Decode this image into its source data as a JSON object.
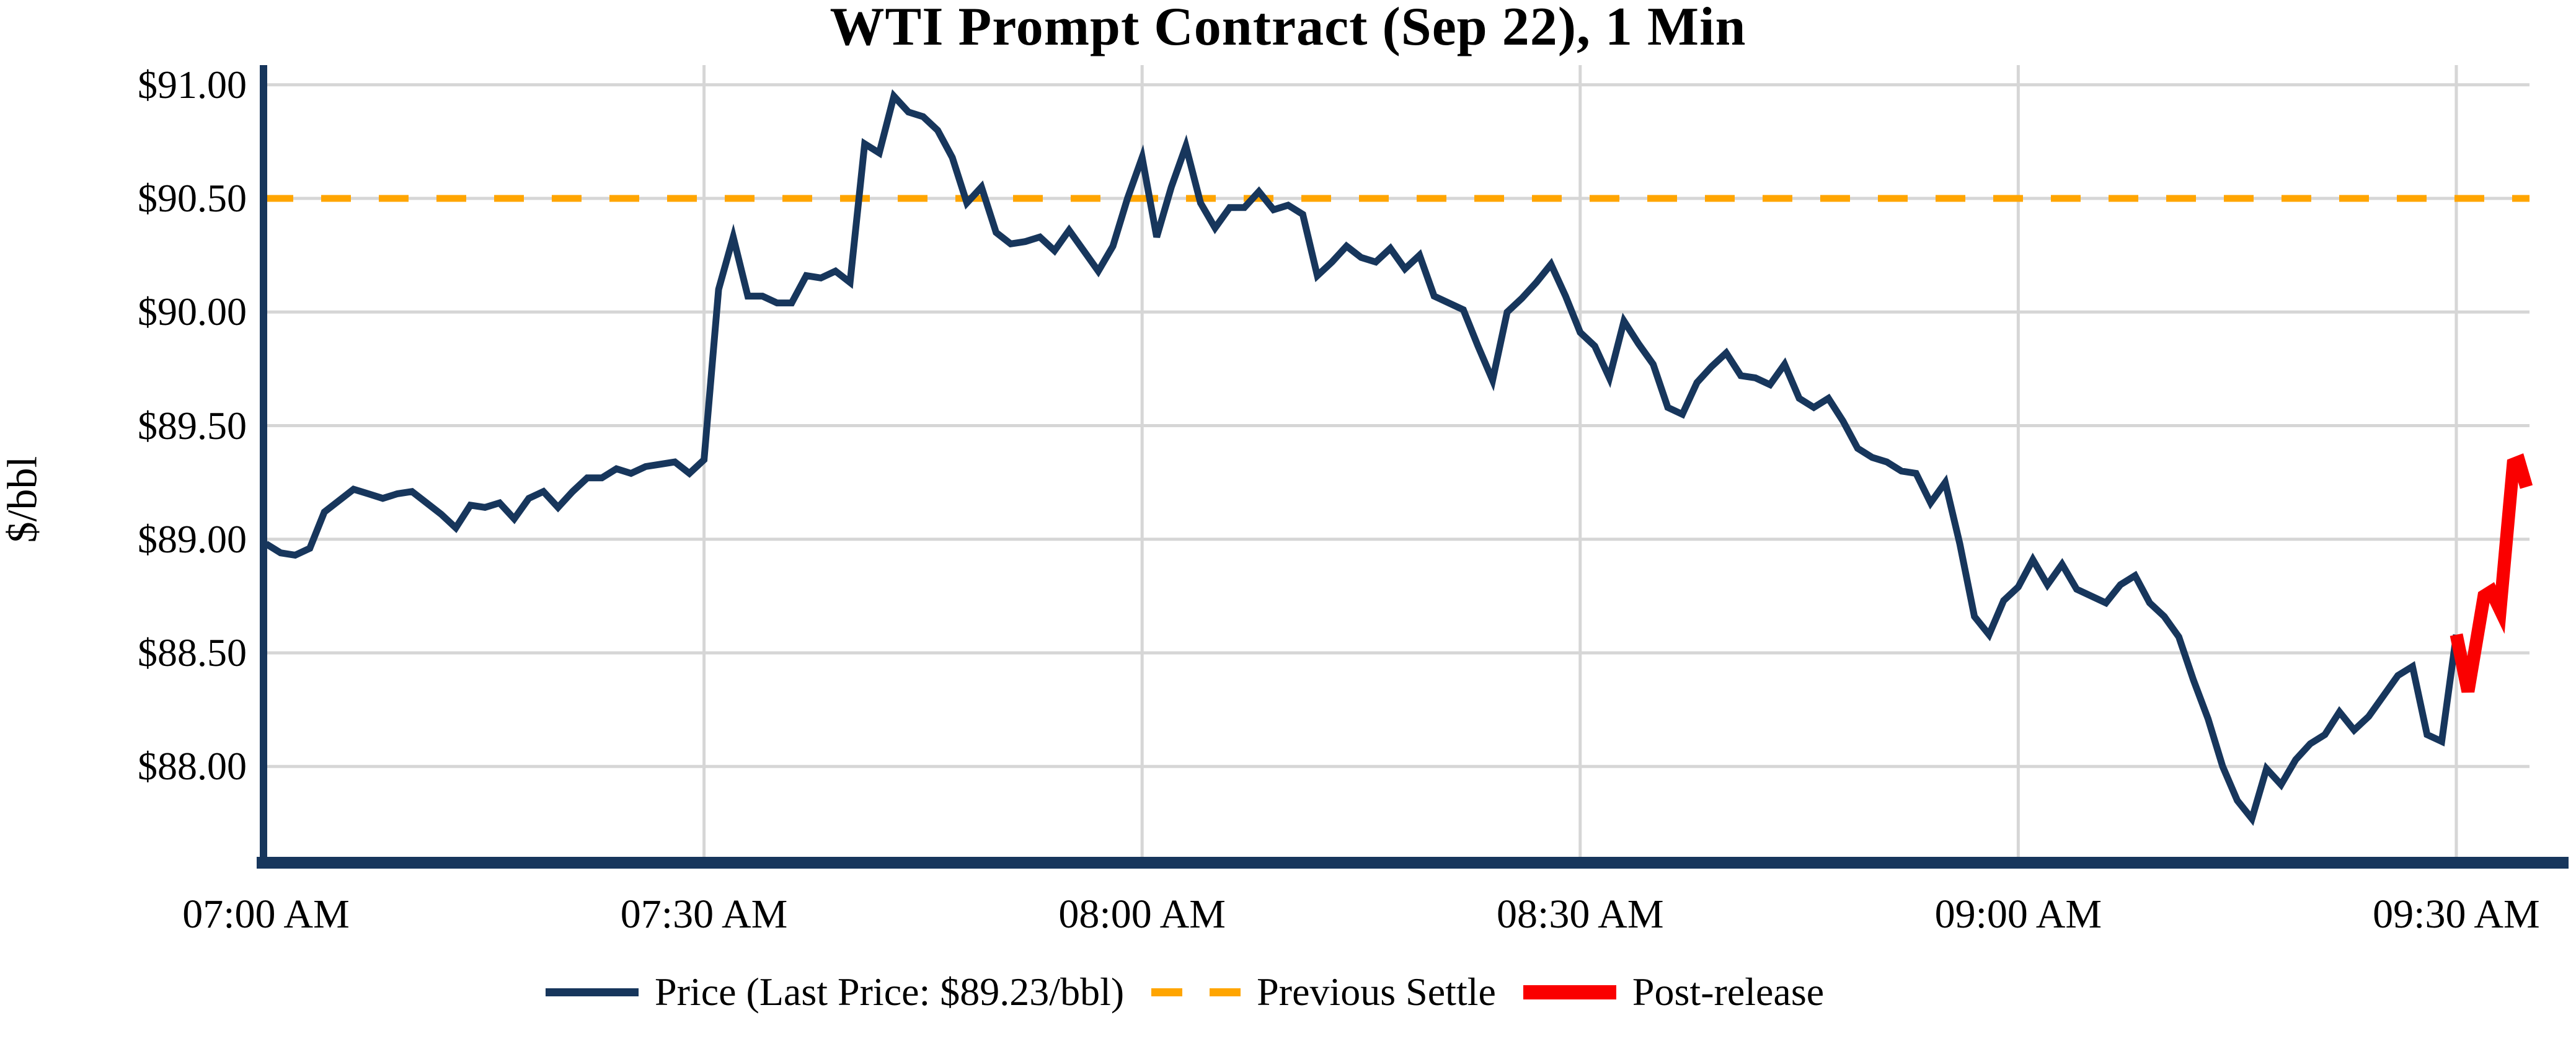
{
  "title": "WTI Prompt Contract (Sep 22), 1 Min",
  "y_axis": {
    "label": "$/bbl",
    "ticks": [
      {
        "value": 91.0,
        "label": "$91.00"
      },
      {
        "value": 90.5,
        "label": "$90.50"
      },
      {
        "value": 90.0,
        "label": "$90.00"
      },
      {
        "value": 89.5,
        "label": "$89.50"
      },
      {
        "value": 89.0,
        "label": "$89.00"
      },
      {
        "value": 88.5,
        "label": "$88.50"
      },
      {
        "value": 88.0,
        "label": "$88.00"
      }
    ]
  },
  "x_axis": {
    "ticks": [
      {
        "minutes": 0,
        "label": "07:00 AM"
      },
      {
        "minutes": 30,
        "label": "07:30 AM"
      },
      {
        "minutes": 60,
        "label": "08:00 AM"
      },
      {
        "minutes": 90,
        "label": "08:30 AM"
      },
      {
        "minutes": 120,
        "label": "09:00 AM"
      },
      {
        "minutes": 150,
        "label": "09:30 AM"
      }
    ]
  },
  "legend": {
    "items": [
      {
        "id": "price",
        "label": "Price (Last Price: $89.23/bbl)",
        "color": "#17365C",
        "style": "solid"
      },
      {
        "id": "previous-settle",
        "label": "Previous Settle",
        "color": "#FFA500",
        "style": "dashed"
      },
      {
        "id": "post-release",
        "label": "Post-release",
        "color": "#FA0000",
        "style": "thick"
      }
    ]
  },
  "last_price_label": "$89.23/bbl",
  "colors": {
    "price_line": "#17365C",
    "settle_line": "#FFA500",
    "post_release_line": "#FA0000",
    "gridline": "#D6D6D6",
    "axis_spine": "#17365C",
    "text": "#000000",
    "background": "#FFFFFF"
  },
  "chart_data": {
    "type": "line",
    "title": "WTI Prompt Contract (Sep 22), 1 Min",
    "xlabel": "",
    "ylabel": "$/bbl",
    "x_unit": "minutes since 07:00 AM",
    "xlim": [
      0,
      155
    ],
    "ylim": [
      87.58,
      91.09
    ],
    "grid": true,
    "legend_position": "bottom",
    "previous_settle": 90.5,
    "last_price": 89.23,
    "series": [
      {
        "name": "Price (Last Price: $89.23/bbl)",
        "color": "#17365C",
        "style": "solid",
        "stroke_width": 11,
        "points": [
          [
            0,
            88.98
          ],
          [
            1,
            88.94
          ],
          [
            2,
            88.93
          ],
          [
            3,
            88.96
          ],
          [
            4,
            89.12
          ],
          [
            5,
            89.17
          ],
          [
            6,
            89.22
          ],
          [
            7,
            89.2
          ],
          [
            8,
            89.18
          ],
          [
            9,
            89.2
          ],
          [
            10,
            89.21
          ],
          [
            11,
            89.16
          ],
          [
            12,
            89.11
          ],
          [
            13,
            89.05
          ],
          [
            14,
            89.15
          ],
          [
            15,
            89.14
          ],
          [
            16,
            89.16
          ],
          [
            17,
            89.09
          ],
          [
            18,
            89.18
          ],
          [
            19,
            89.21
          ],
          [
            20,
            89.14
          ],
          [
            21,
            89.21
          ],
          [
            22,
            89.27
          ],
          [
            23,
            89.27
          ],
          [
            24,
            89.31
          ],
          [
            25,
            89.29
          ],
          [
            26,
            89.32
          ],
          [
            27,
            89.33
          ],
          [
            28,
            89.34
          ],
          [
            29,
            89.29
          ],
          [
            30,
            89.35
          ],
          [
            31,
            90.1
          ],
          [
            32,
            90.33
          ],
          [
            33,
            90.07
          ],
          [
            34,
            90.07
          ],
          [
            35,
            90.04
          ],
          [
            36,
            90.04
          ],
          [
            37,
            90.16
          ],
          [
            38,
            90.15
          ],
          [
            39,
            90.18
          ],
          [
            40,
            90.13
          ],
          [
            41,
            90.74
          ],
          [
            42,
            90.7
          ],
          [
            43,
            90.95
          ],
          [
            44,
            90.88
          ],
          [
            45,
            90.86
          ],
          [
            46,
            90.8
          ],
          [
            47,
            90.68
          ],
          [
            48,
            90.48
          ],
          [
            49,
            90.55
          ],
          [
            50,
            90.35
          ],
          [
            51,
            90.3
          ],
          [
            52,
            90.31
          ],
          [
            53,
            90.33
          ],
          [
            54,
            90.27
          ],
          [
            55,
            90.36
          ],
          [
            56,
            90.27
          ],
          [
            57,
            90.18
          ],
          [
            58,
            90.29
          ],
          [
            59,
            90.5
          ],
          [
            60,
            90.68
          ],
          [
            61,
            90.33
          ],
          [
            62,
            90.55
          ],
          [
            63,
            90.73
          ],
          [
            64,
            90.48
          ],
          [
            65,
            90.37
          ],
          [
            66,
            90.46
          ],
          [
            67,
            90.46
          ],
          [
            68,
            90.53
          ],
          [
            69,
            90.45
          ],
          [
            70,
            90.47
          ],
          [
            71,
            90.43
          ],
          [
            72,
            90.16
          ],
          [
            73,
            90.22
          ],
          [
            74,
            90.29
          ],
          [
            75,
            90.24
          ],
          [
            76,
            90.22
          ],
          [
            77,
            90.28
          ],
          [
            78,
            90.19
          ],
          [
            79,
            90.25
          ],
          [
            80,
            90.07
          ],
          [
            81,
            90.04
          ],
          [
            82,
            90.01
          ],
          [
            83,
            89.85
          ],
          [
            84,
            89.7
          ],
          [
            85,
            90.0
          ],
          [
            86,
            90.06
          ],
          [
            87,
            90.13
          ],
          [
            88,
            90.21
          ],
          [
            89,
            90.07
          ],
          [
            90,
            89.91
          ],
          [
            91,
            89.85
          ],
          [
            92,
            89.71
          ],
          [
            93,
            89.96
          ],
          [
            94,
            89.86
          ],
          [
            95,
            89.77
          ],
          [
            96,
            89.58
          ],
          [
            97,
            89.55
          ],
          [
            98,
            89.69
          ],
          [
            99,
            89.76
          ],
          [
            100,
            89.82
          ],
          [
            101,
            89.72
          ],
          [
            102,
            89.71
          ],
          [
            103,
            89.68
          ],
          [
            104,
            89.77
          ],
          [
            105,
            89.62
          ],
          [
            106,
            89.58
          ],
          [
            107,
            89.62
          ],
          [
            108,
            89.52
          ],
          [
            109,
            89.4
          ],
          [
            110,
            89.36
          ],
          [
            111,
            89.34
          ],
          [
            112,
            89.3
          ],
          [
            113,
            89.29
          ],
          [
            114,
            89.16
          ],
          [
            115,
            89.25
          ],
          [
            116,
            88.98
          ],
          [
            117,
            88.66
          ],
          [
            118,
            88.58
          ],
          [
            119,
            88.73
          ],
          [
            120,
            88.79
          ],
          [
            121,
            88.91
          ],
          [
            122,
            88.8
          ],
          [
            123,
            88.89
          ],
          [
            124,
            88.78
          ],
          [
            125,
            88.75
          ],
          [
            126,
            88.72
          ],
          [
            127,
            88.8
          ],
          [
            128,
            88.84
          ],
          [
            129,
            88.72
          ],
          [
            130,
            88.66
          ],
          [
            131,
            88.57
          ],
          [
            132,
            88.38
          ],
          [
            133,
            88.21
          ],
          [
            134,
            88.0
          ],
          [
            135,
            87.85
          ],
          [
            136,
            87.77
          ],
          [
            137,
            87.99
          ],
          [
            138,
            87.92
          ],
          [
            139,
            88.03
          ],
          [
            140,
            88.1
          ],
          [
            141,
            88.14
          ],
          [
            142,
            88.24
          ],
          [
            143,
            88.16
          ],
          [
            144,
            88.22
          ],
          [
            145,
            88.31
          ],
          [
            146,
            88.4
          ],
          [
            147,
            88.44
          ],
          [
            148,
            88.14
          ],
          [
            149,
            88.11
          ],
          [
            150,
            88.58
          ]
        ]
      },
      {
        "name": "Previous Settle",
        "color": "#FFA500",
        "style": "dashed",
        "stroke_width": 11,
        "value": 90.5
      },
      {
        "name": "Post-release",
        "color": "#FA0000",
        "style": "solid",
        "stroke_width": 21,
        "points": [
          [
            150,
            88.58
          ],
          [
            150.8,
            88.33
          ],
          [
            151.9,
            88.75
          ],
          [
            152.4,
            88.77
          ],
          [
            153.0,
            88.69
          ],
          [
            153.9,
            89.33
          ],
          [
            154.3,
            89.34
          ],
          [
            154.8,
            89.23
          ]
        ]
      }
    ]
  }
}
